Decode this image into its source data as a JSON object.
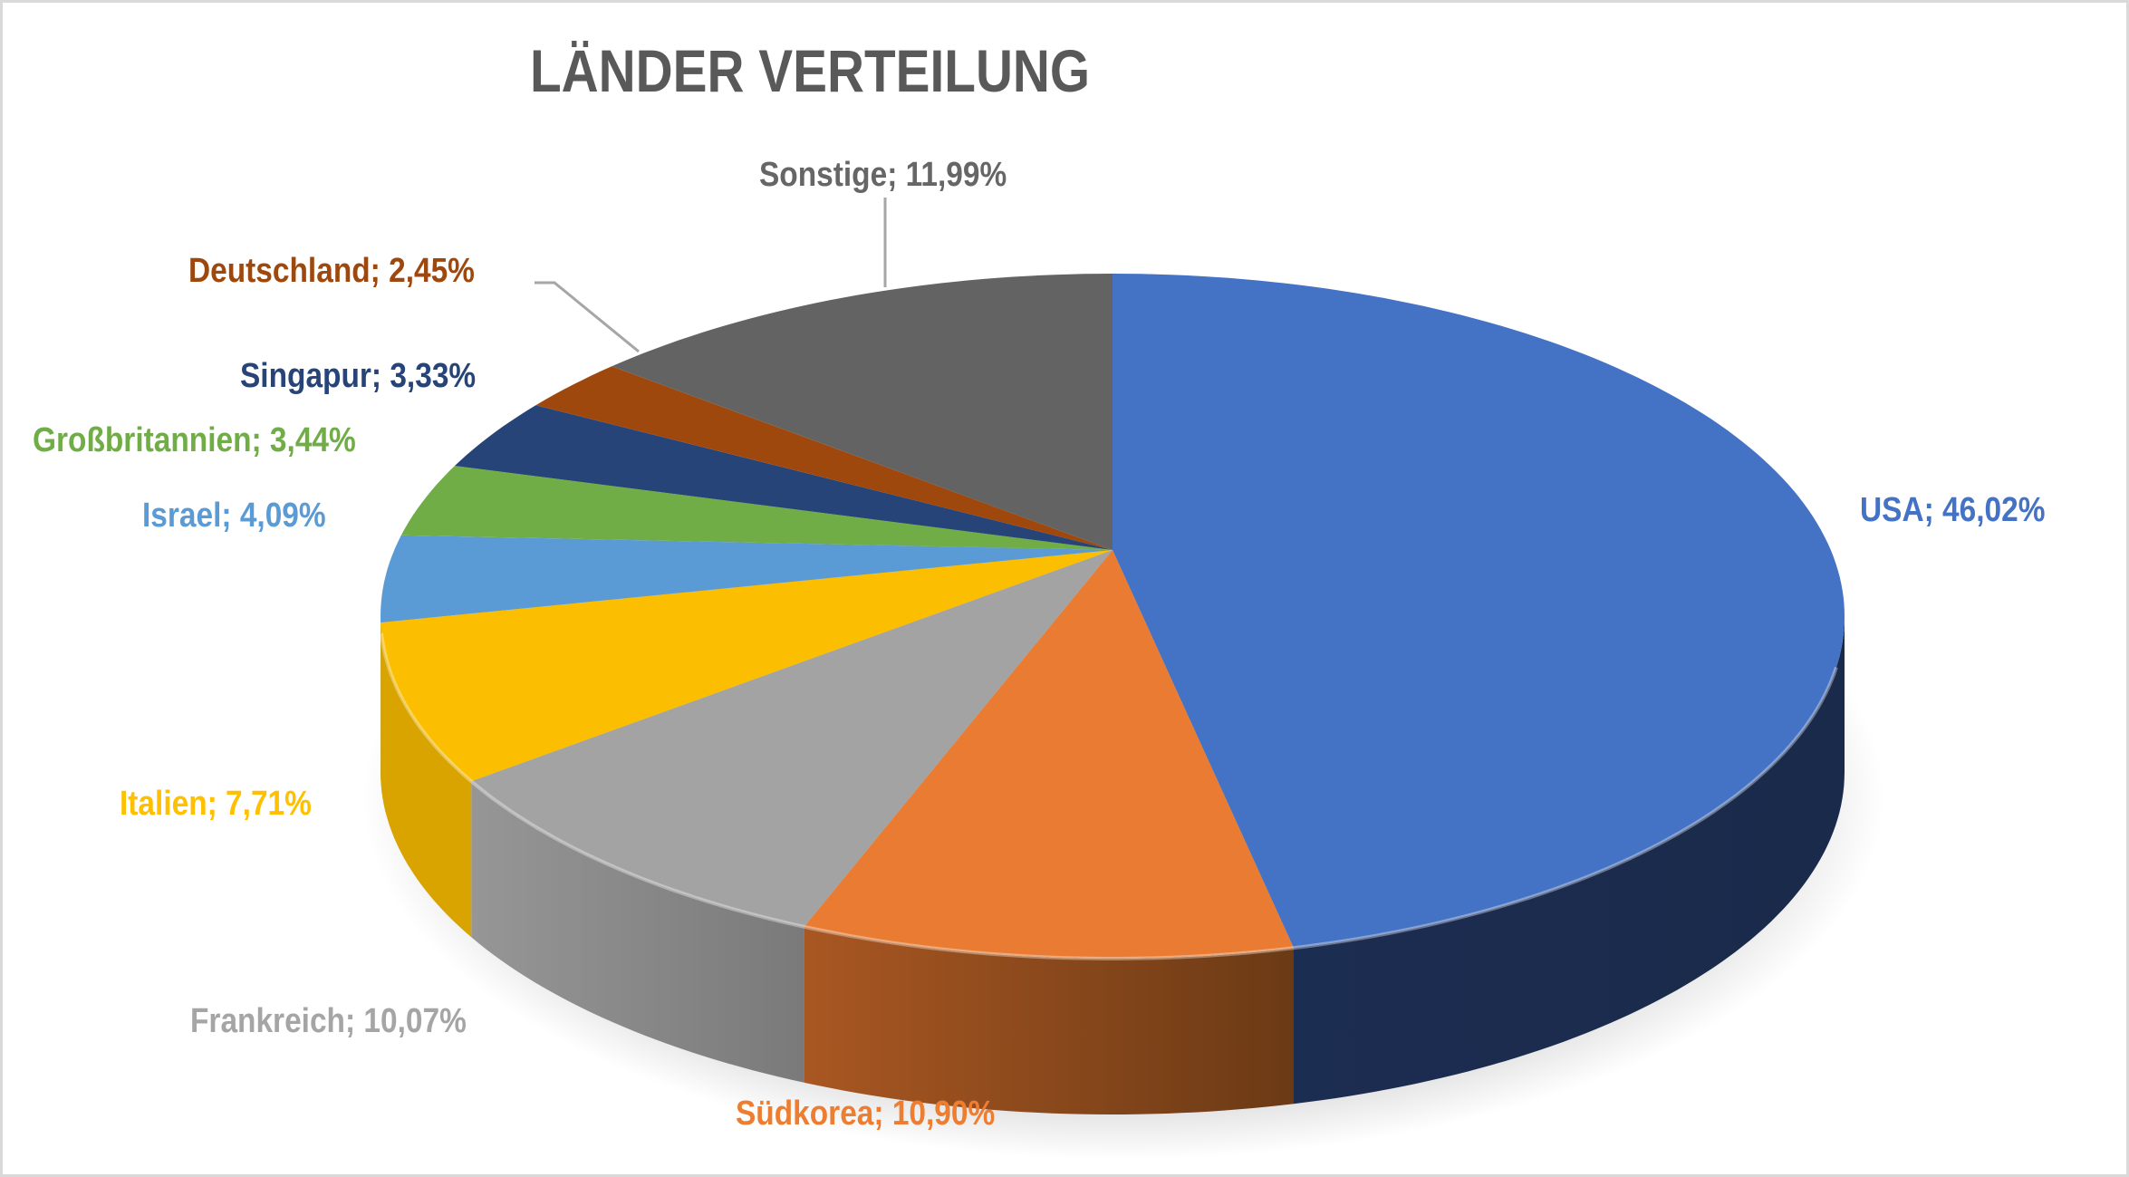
{
  "chart_data": {
    "type": "pie",
    "style": "3d",
    "title": "LÄNDER VERTEILUNG",
    "categories": [
      "USA",
      "Südkorea",
      "Frankreich",
      "Italien",
      "Israel",
      "Großbritannien",
      "Singapur",
      "Deutschland",
      "Sonstige"
    ],
    "values": [
      46.02,
      10.9,
      10.07,
      7.71,
      4.09,
      3.44,
      3.33,
      2.45,
      11.99
    ],
    "unit": "%",
    "labels": [
      "USA; 46,02%",
      "Südkorea; 10,90%",
      "Frankreich; 10,07%",
      "Italien; 7,71%",
      "Israel; 4,09%",
      "Großbritannien; 3,44%",
      "Singapur; 3,33%",
      "Deutschland; 2,45%",
      "Sonstige; 11,99%"
    ],
    "colors": [
      "#4472c4",
      "#ed7d31",
      "#a5a5a5",
      "#ffc000",
      "#5b9bd5",
      "#70ad47",
      "#264478",
      "#9e480e",
      "#636363"
    ],
    "legend": "none (data labels with category name and percentage)"
  },
  "title": "LÄNDER VERTEILUNG",
  "slices": [
    {
      "name": "USA",
      "label": "USA; 46,02%",
      "color": "#4472c4",
      "wall": "#1b2b4d",
      "label_color": "#4472c4"
    },
    {
      "name": "Südkorea",
      "label": "Südkorea; 10,90%",
      "color": "#e97c32",
      "wall": "#8a451a",
      "label_color": "#ed7d31"
    },
    {
      "name": "Frankreich",
      "label": "Frankreich; 10,07%",
      "color": "#a3a3a3",
      "wall": "#858585",
      "label_color": "#a5a5a5"
    },
    {
      "name": "Italien",
      "label": "Italien; 7,71%",
      "color": "#fbbe00",
      "wall": "#d9a300",
      "label_color": "#ffc000"
    },
    {
      "name": "Israel",
      "label": "Israel; 4,09%",
      "color": "#5b9bd5",
      "wall": "#3f78ad",
      "label_color": "#5b9bd5"
    },
    {
      "name": "Großbritannien",
      "label": "Großbritannien; 3,44%",
      "color": "#70ad47",
      "wall": "#538234",
      "label_color": "#70ad47"
    },
    {
      "name": "Singapur",
      "label": "Singapur; 3,33%",
      "color": "#264478",
      "wall": "#1a2f55",
      "label_color": "#264478"
    },
    {
      "name": "Deutschland",
      "label": "Deutschland; 2,45%",
      "color": "#9e480e",
      "wall": "#73340a",
      "label_color": "#9e480e"
    },
    {
      "name": "Sonstige",
      "label": "Sonstige; 11,99%",
      "color": "#636363",
      "wall": "#4a4a4a",
      "label_color": "#666666"
    }
  ]
}
